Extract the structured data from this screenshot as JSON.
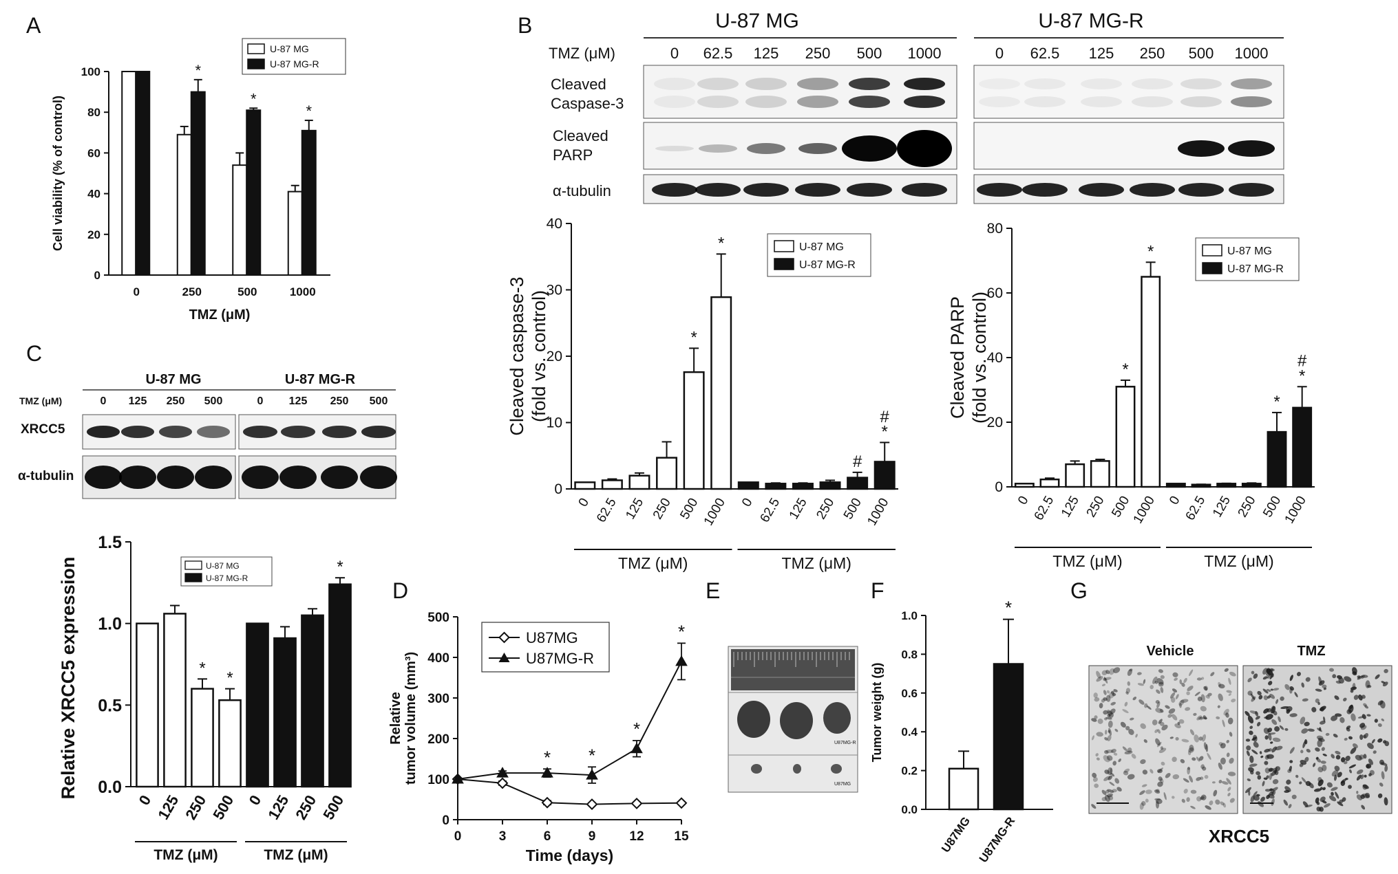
{
  "panel_letters": {
    "a": "A",
    "b": "B",
    "c": "C",
    "d": "D",
    "e": "E",
    "f": "F",
    "g": "G"
  },
  "blot_b": {
    "cell_lines": [
      "U-87 MG",
      "U-87 MG-R"
    ],
    "dose_label": "TMZ (μM)",
    "doses": [
      "0",
      "62.5",
      "125",
      "250",
      "500",
      "1000"
    ],
    "row_labels": {
      "caspase_1": "Cleaved",
      "caspase_2": "Caspase-3",
      "parp_1": "Cleaved",
      "parp_2": "PARP",
      "tubulin": "α-tubulin"
    }
  },
  "blot_c": {
    "cell_lines": [
      "U-87 MG",
      "U-87 MG-R"
    ],
    "dose_label": "TMZ (μM)",
    "doses": [
      "0",
      "125",
      "250",
      "500"
    ],
    "row_labels": {
      "xrcc5": "XRCC5",
      "tubulin": "α-tubulin"
    }
  },
  "panel_e_labels": {
    "resistant": "U87MG-R",
    "parental": "U87MG"
  },
  "panel_g": {
    "col_labels": [
      "Vehicle",
      "TMZ"
    ],
    "caption": "XRCC5"
  },
  "colors": {
    "open_bar": "#ffffff",
    "filled_bar": "#111111",
    "axis": "#111111"
  },
  "chart_data": [
    {
      "id": "A",
      "type": "bar",
      "title": "",
      "xlabel": "TMZ (μM)",
      "ylabel": "Cell viability (% of control)",
      "categories": [
        "0",
        "250",
        "500",
        "1000"
      ],
      "ylim": [
        0,
        100
      ],
      "yticks": [
        0,
        20,
        40,
        60,
        80,
        100
      ],
      "series": [
        {
          "name": "U-87 MG",
          "values": [
            100,
            69,
            54,
            41
          ],
          "errors": [
            0,
            4,
            6,
            3
          ],
          "marks": [
            "",
            "",
            "",
            ""
          ]
        },
        {
          "name": "U-87 MG-R",
          "values": [
            100,
            90,
            81,
            71
          ],
          "errors": [
            0,
            6,
            1,
            5
          ],
          "marks": [
            "",
            "*",
            "*",
            "*"
          ]
        }
      ],
      "legend": "top-right"
    },
    {
      "id": "B-caspase",
      "type": "bar",
      "title": "",
      "xlabel": "TMZ (μM)",
      "ylabel": [
        "Cleaved caspase-3",
        "(fold vs. control)"
      ],
      "categories": [
        "0",
        "62.5",
        "125",
        "250",
        "500",
        "1000"
      ],
      "ylim": [
        0,
        40
      ],
      "yticks": [
        0,
        10,
        20,
        30,
        40
      ],
      "series": [
        {
          "name": "U-87 MG",
          "values": [
            1,
            1.3,
            2,
            4.7,
            17.6,
            28.9
          ],
          "errors": [
            0,
            0.2,
            0.4,
            2.4,
            3.6,
            6.5
          ],
          "marks": [
            "",
            "",
            "",
            "",
            "*",
            "*"
          ]
        },
        {
          "name": "U-87 MG-R",
          "values": [
            1,
            0.8,
            0.8,
            1,
            1.7,
            4.1
          ],
          "errors": [
            0,
            0.1,
            0.1,
            0.3,
            0.8,
            2.9
          ],
          "marks": [
            "",
            "",
            "",
            "",
            "#",
            "#\n*"
          ]
        }
      ],
      "legend": "top-right"
    },
    {
      "id": "B-parp",
      "type": "bar",
      "title": "",
      "xlabel": "TMZ (μM)",
      "ylabel": [
        "Cleaved PARP",
        "(fold vs. control)"
      ],
      "categories": [
        "0",
        "62.5",
        "125",
        "250",
        "500",
        "1000"
      ],
      "ylim": [
        0,
        80
      ],
      "yticks": [
        0,
        20,
        40,
        60,
        80
      ],
      "series": [
        {
          "name": "U-87 MG",
          "values": [
            1,
            2.3,
            7,
            8,
            31,
            65
          ],
          "errors": [
            0,
            0.4,
            1,
            0.5,
            2,
            4.5
          ],
          "marks": [
            "",
            "",
            "",
            "",
            "*",
            "*"
          ]
        },
        {
          "name": "U-87 MG-R",
          "values": [
            1,
            0.7,
            1,
            1,
            17,
            24.5
          ],
          "errors": [
            0,
            0.1,
            0.1,
            0.2,
            6,
            6.5
          ],
          "marks": [
            "",
            "",
            "",
            "",
            "*",
            "#\n*"
          ]
        }
      ],
      "legend": "top-right"
    },
    {
      "id": "C",
      "type": "bar",
      "title": "",
      "xlabel": "TMZ (μM)",
      "ylabel": "Relative XRCC5 expression",
      "categories": [
        "0",
        "125",
        "250",
        "500"
      ],
      "ylim": [
        0,
        1.5
      ],
      "yticks": [
        "0.0",
        "0.5",
        "1.0",
        "1.5"
      ],
      "series": [
        {
          "name": "U-87 MG",
          "values": [
            1,
            1.06,
            0.6,
            0.53
          ],
          "errors": [
            0,
            0.05,
            0.06,
            0.07
          ],
          "marks": [
            "",
            "",
            "*",
            "*"
          ]
        },
        {
          "name": "U-87 MG-R",
          "values": [
            1,
            0.91,
            1.05,
            1.24
          ],
          "errors": [
            0,
            0.07,
            0.04,
            0.04
          ],
          "marks": [
            "",
            "",
            "",
            "*"
          ]
        }
      ],
      "legend": "top-right"
    },
    {
      "id": "D",
      "type": "line",
      "title": "",
      "xlabel": "Time (days)",
      "ylabel": [
        "Relative",
        "tumor volume (mm³)"
      ],
      "x": [
        0,
        3,
        6,
        9,
        12,
        15
      ],
      "xlim": [
        0,
        15
      ],
      "ylim": [
        0,
        500
      ],
      "yticks": [
        0,
        100,
        200,
        300,
        400,
        500
      ],
      "series": [
        {
          "name": "U87MG",
          "marker": "diamond-open",
          "values": [
            100,
            90,
            42,
            38,
            40,
            41
          ],
          "errors": [
            0,
            5,
            5,
            3,
            3,
            3
          ]
        },
        {
          "name": "U87MG-R",
          "marker": "triangle-filled",
          "values": [
            100,
            115,
            115,
            110,
            175,
            390
          ],
          "errors": [
            0,
            5,
            10,
            20,
            20,
            45
          ]
        }
      ],
      "marks": [
        "",
        "",
        "*",
        "*",
        "*",
        "*"
      ],
      "legend": "top-left"
    },
    {
      "id": "F",
      "type": "bar",
      "title": "",
      "xlabel": "",
      "ylabel": "Tumor weight (g)",
      "categories": [
        "U87MG",
        "U87MG-R"
      ],
      "ylim": [
        0,
        1.0
      ],
      "yticks": [
        "0.0",
        "0.2",
        "0.4",
        "0.6",
        "0.8",
        "1.0"
      ],
      "values": [
        0.21,
        0.75
      ],
      "errors": [
        0.09,
        0.23
      ],
      "marks": [
        "",
        "*"
      ]
    }
  ]
}
